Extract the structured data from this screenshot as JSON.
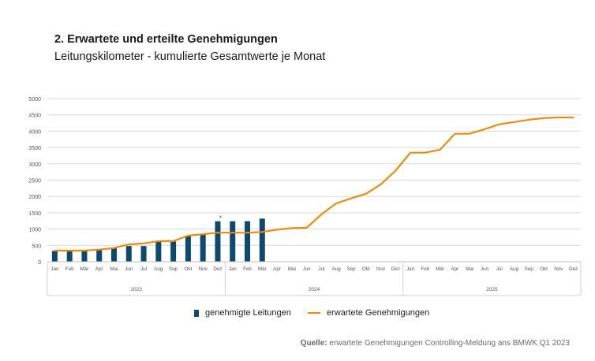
{
  "header": {
    "title": "2. Erwartete und erteilte Genehmigungen",
    "subtitle": "Leitungskilometer - kumulierte Gesamtwerte je Monat"
  },
  "legend": {
    "bars_label": "genehmigte Leitungen",
    "line_label": "erwartete Genehmigungen"
  },
  "source": {
    "label": "Quelle:",
    "text": "erwartete Genehmigungen Controlling-Meldung ans BMWK Q1 2023"
  },
  "colors": {
    "bars": "#0e4a6e",
    "line": "#ee8a0c",
    "grid": "#d9d9d9",
    "axis_text": "#555555"
  },
  "chart_data": {
    "type": "bar+line",
    "ylim": [
      0,
      5000
    ],
    "yticks": [
      0,
      500,
      1000,
      1500,
      2000,
      2500,
      3000,
      3500,
      4000,
      4500,
      5000
    ],
    "categories": [
      "Jan",
      "Feb",
      "Mär",
      "Apr",
      "Mai",
      "Jun",
      "Jul",
      "Aug",
      "Sep",
      "Okt",
      "Nov",
      "Dez",
      "Jan",
      "Feb",
      "Mär",
      "Apr",
      "Mai",
      "Jun",
      "Jul",
      "Aug",
      "Sep",
      "Okt",
      "Nov",
      "Dez",
      "Jan",
      "Feb",
      "Mär",
      "Apr",
      "Mai",
      "Jun",
      "Jul",
      "Aug",
      "Sep",
      "Okt",
      "Nov",
      "Dez"
    ],
    "years": [
      "2023",
      "2024",
      "2025"
    ],
    "annotation": {
      "text": "*",
      "category_index": 11
    },
    "series": [
      {
        "name": "genehmigte Leitungen",
        "type": "bar",
        "values": [
          330,
          330,
          330,
          360,
          430,
          480,
          480,
          620,
          620,
          790,
          830,
          1240,
          1240,
          1240,
          1320,
          null,
          null,
          null,
          null,
          null,
          null,
          null,
          null,
          null,
          null,
          null,
          null,
          null,
          null,
          null,
          null,
          null,
          null,
          null,
          null,
          null
        ]
      },
      {
        "name": "erwartete Genehmigungen",
        "type": "line",
        "values": [
          340,
          340,
          340,
          370,
          420,
          530,
          560,
          630,
          630,
          800,
          840,
          890,
          890,
          890,
          910,
          980,
          1030,
          1040,
          1450,
          1790,
          1940,
          2080,
          2370,
          2790,
          3340,
          3340,
          3430,
          3920,
          3920,
          4060,
          4210,
          4280,
          4350,
          4400,
          4420,
          4420
        ]
      }
    ]
  }
}
